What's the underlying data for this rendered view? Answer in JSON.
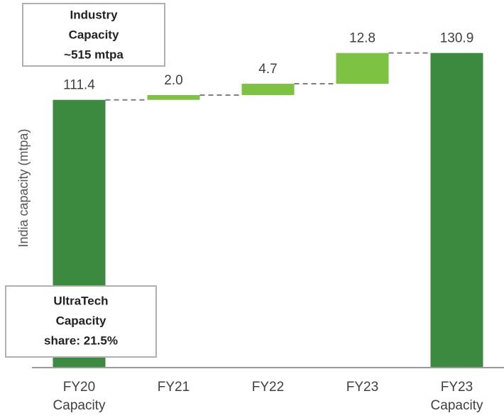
{
  "chart_data": {
    "type": "waterfall",
    "ylabel": "India capacity (mtpa)",
    "categories": [
      [
        "FY20",
        "Capacity"
      ],
      [
        "FY21"
      ],
      [
        "FY22"
      ],
      [
        "FY23"
      ],
      [
        "FY23",
        "Capacity"
      ]
    ],
    "values": [
      111.4,
      2.0,
      4.7,
      12.8,
      130.9
    ],
    "value_labels": [
      "111.4",
      "2.0",
      "4.7",
      "12.8",
      "130.9"
    ],
    "measures": [
      "absolute",
      "relative",
      "relative",
      "relative",
      "total"
    ],
    "colors": [
      "#3b8a3f",
      "#7dc242",
      "#7dc242",
      "#7dc242",
      "#3b8a3f"
    ],
    "ylim": [
      0,
      150
    ],
    "annotations": [
      {
        "lines": [
          "Industry",
          "Capacity",
          "~515 mtpa"
        ]
      },
      {
        "lines": [
          "UltraTech",
          "Capacity",
          "share: 21.5%"
        ]
      }
    ]
  }
}
